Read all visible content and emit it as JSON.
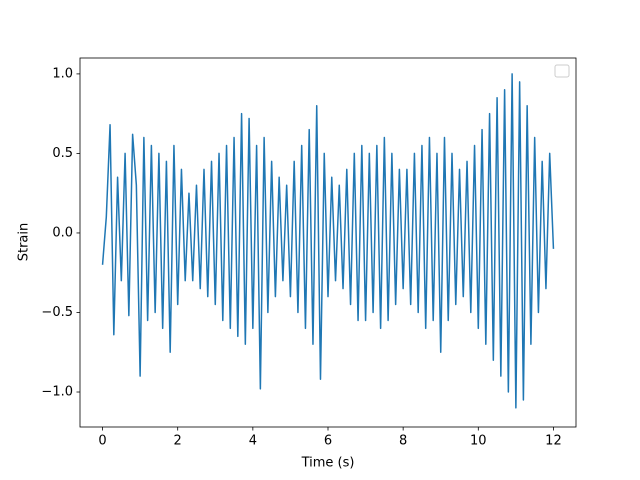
{
  "chart_data": {
    "type": "line",
    "xlabel": "Time (s)",
    "ylabel": "Strain",
    "color": "#1f77b4",
    "legend": "upper right",
    "xlim": [
      -0.6,
      12.6
    ],
    "ylim": [
      -1.22,
      1.1
    ],
    "xticks": [
      0,
      2,
      4,
      6,
      8,
      10,
      12
    ],
    "yticks": [
      {
        "value": -1.0,
        "label": "−1.0"
      },
      {
        "value": -0.5,
        "label": "−0.5"
      },
      {
        "value": 0.0,
        "label": "0.0"
      },
      {
        "value": 0.5,
        "label": "0.5"
      },
      {
        "value": 1.0,
        "label": "1.0"
      }
    ],
    "x": [
      0,
      0.1,
      0.2,
      0.3,
      0.4,
      0.5,
      0.6,
      0.7,
      0.8,
      0.9,
      1,
      1.1,
      1.2,
      1.3,
      1.4,
      1.5,
      1.6,
      1.7,
      1.8,
      1.9,
      2,
      2.1,
      2.2,
      2.3,
      2.4,
      2.5,
      2.6,
      2.7,
      2.8,
      2.9,
      3,
      3.1,
      3.2,
      3.3,
      3.4,
      3.5,
      3.6,
      3.7,
      3.8,
      3.9,
      4,
      4.1,
      4.2,
      4.3,
      4.4,
      4.5,
      4.6,
      4.7,
      4.8,
      4.9,
      5,
      5.1,
      5.2,
      5.3,
      5.4,
      5.5,
      5.6,
      5.7,
      5.8,
      5.9,
      6,
      6.1,
      6.2,
      6.3,
      6.4,
      6.5,
      6.6,
      6.7,
      6.8,
      6.9,
      7,
      7.1,
      7.2,
      7.3,
      7.4,
      7.5,
      7.6,
      7.7,
      7.8,
      7.9,
      8,
      8.1,
      8.2,
      8.3,
      8.4,
      8.5,
      8.6,
      8.7,
      8.8,
      8.9,
      9,
      9.1,
      9.2,
      9.3,
      9.4,
      9.5,
      9.6,
      9.7,
      9.8,
      9.9,
      10,
      10.1,
      10.2,
      10.3,
      10.4,
      10.5,
      10.6,
      10.7,
      10.8,
      10.9,
      11,
      11.1,
      11.2,
      11.3,
      11.4,
      11.5,
      11.6,
      11.7,
      11.8,
      11.9,
      12
    ],
    "values": [
      -0.2,
      0.1,
      0.68,
      -0.64,
      0.35,
      -0.3,
      0.5,
      -0.52,
      0.62,
      0.3,
      -0.9,
      0.6,
      -0.55,
      0.55,
      -0.5,
      0.5,
      -0.6,
      0.45,
      -0.75,
      0.55,
      -0.45,
      0.4,
      -0.3,
      0.25,
      -0.3,
      0.3,
      -0.35,
      0.4,
      -0.4,
      0.45,
      -0.45,
      0.5,
      -0.55,
      0.55,
      -0.6,
      0.6,
      -0.65,
      0.75,
      -0.7,
      0.72,
      -0.6,
      0.55,
      -0.98,
      0.6,
      -0.5,
      0.45,
      -0.4,
      0.35,
      -0.3,
      0.3,
      -0.4,
      0.45,
      -0.5,
      0.55,
      -0.6,
      0.65,
      -0.7,
      0.8,
      -0.92,
      0.5,
      -0.4,
      0.35,
      -0.3,
      0.3,
      -0.35,
      0.4,
      -0.45,
      0.5,
      -0.55,
      0.55,
      -0.55,
      0.5,
      -0.5,
      0.55,
      -0.6,
      0.6,
      -0.55,
      0.5,
      -0.45,
      0.4,
      -0.35,
      0.4,
      -0.45,
      0.5,
      -0.5,
      0.55,
      -0.6,
      0.6,
      -0.55,
      0.5,
      -0.75,
      0.6,
      -0.55,
      0.5,
      -0.45,
      0.4,
      -0.4,
      0.45,
      -0.5,
      0.55,
      -0.6,
      0.65,
      -0.7,
      0.75,
      -0.8,
      0.85,
      -0.9,
      0.9,
      -1.0,
      1.0,
      -1.1,
      0.95,
      -1.05,
      0.8,
      -0.7,
      0.6,
      -0.5,
      0.45,
      -0.35,
      0.5,
      -0.1
    ]
  }
}
